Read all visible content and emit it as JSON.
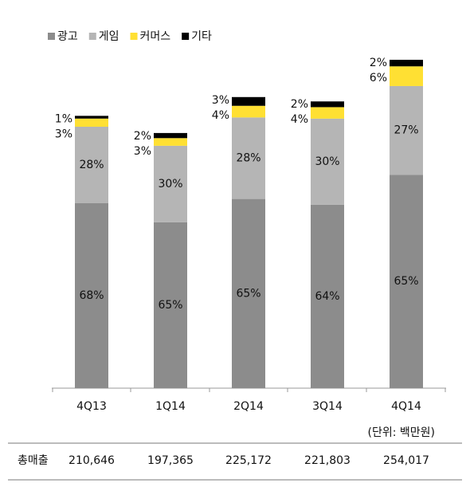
{
  "chart_data": {
    "type": "stacked_bar",
    "categories": [
      "4Q13",
      "1Q14",
      "2Q14",
      "3Q14",
      "4Q14"
    ],
    "series": [
      {
        "name": "광고",
        "color": "#8c8c8c",
        "values": [
          68,
          65,
          65,
          64,
          65
        ],
        "value_labels": [
          "68%",
          "65%",
          "65%",
          "64%",
          "65%"
        ]
      },
      {
        "name": "게임",
        "color": "#b5b5b5",
        "values": [
          28,
          30,
          28,
          30,
          27
        ],
        "value_labels": [
          "28%",
          "30%",
          "28%",
          "30%",
          "27%"
        ]
      },
      {
        "name": "커머스",
        "color": "#ffe033",
        "values": [
          3,
          3,
          4,
          4,
          6
        ],
        "value_labels": [
          "3%",
          "3%",
          "4%",
          "4%",
          "6%"
        ]
      },
      {
        "name": "기타",
        "color": "#000000",
        "values": [
          1,
          2,
          3,
          2,
          2
        ],
        "value_labels": [
          "1%",
          "2%",
          "3%",
          "2%",
          "2%"
        ]
      }
    ],
    "unit_note": "(단위: 백만원)",
    "total_row": {
      "label": "총매출",
      "values": [
        210646,
        197365,
        225172,
        221803,
        254017
      ],
      "value_labels": [
        "210,646",
        "197,365",
        "225,172",
        "221,803",
        "254,017"
      ]
    }
  }
}
